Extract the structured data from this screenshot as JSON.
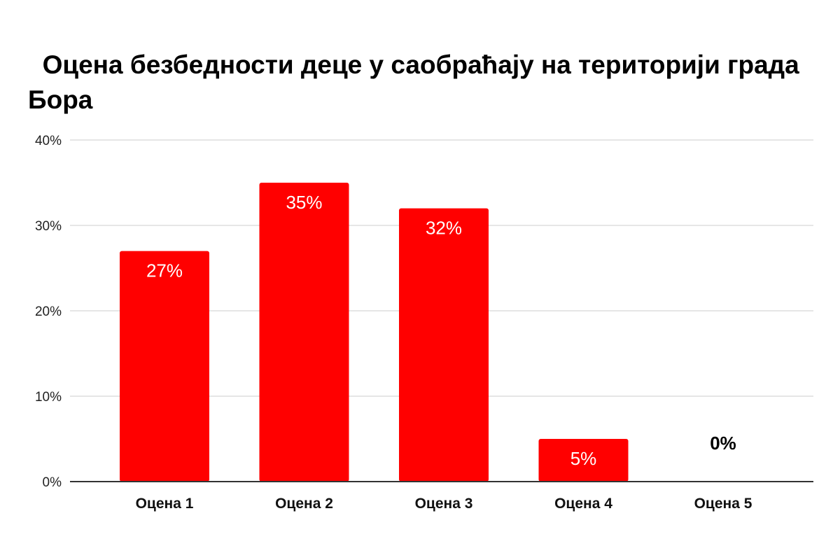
{
  "chart_data": {
    "type": "bar",
    "title": "  Оцена безбедности деце у саобраћају на територији града Бора",
    "xlabel": "",
    "ylabel": "",
    "categories": [
      "Оцена 1",
      "Оцена 2",
      "Оцена 3",
      "Оцена 4",
      "Оцена 5"
    ],
    "values": [
      27,
      35,
      32,
      5,
      0
    ],
    "data_labels": [
      "27%",
      "35%",
      "32%",
      "5%",
      "0%"
    ],
    "ylim": [
      0,
      40
    ],
    "y_ticks": [
      0,
      10,
      20,
      30,
      40
    ],
    "y_tick_labels": [
      "0%",
      "10%",
      "20%",
      "30%",
      "40%"
    ],
    "grid": true,
    "legend": "none",
    "colors": {
      "bar": "#ff0000",
      "label_inside": "#ffffff",
      "label_outside": "#000000",
      "grid": "#cccccc",
      "axis": "#333333"
    }
  }
}
